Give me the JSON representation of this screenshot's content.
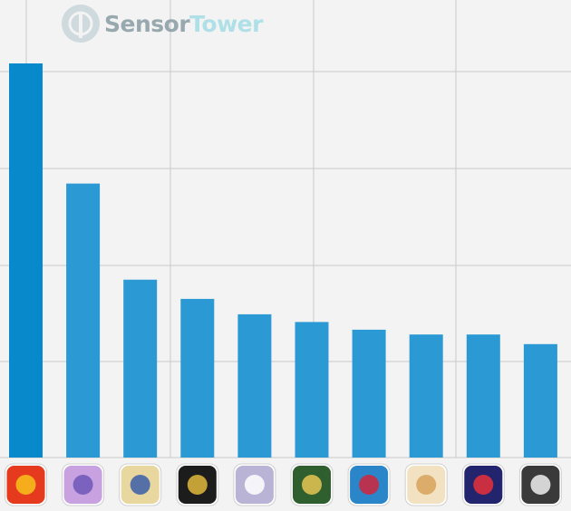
{
  "watermark": {
    "part1": "Sensor",
    "part2": "Tower",
    "color1": "#8fa0a8",
    "color2": "#a8dfe6"
  },
  "colors": {
    "background": "#f3f3f3",
    "grid": "#c9c9c9",
    "bar_first": "#0789cc",
    "bar_rest": "#2b9ad4"
  },
  "chart_data": {
    "type": "bar",
    "title": "",
    "xlabel": "",
    "ylabel": "",
    "ylim": [
      0,
      4.1
    ],
    "grid": true,
    "legend": "none",
    "categories": [
      "app-icon-monster-strike",
      "app-icon-uma-musume",
      "app-icon-fate-grand-order",
      "app-icon-knives-out",
      "app-icon-blue-archive",
      "app-icon-pixel-heroes",
      "app-icon-puzzle-and-dragons",
      "app-icon-genshin-impact",
      "app-icon-pokemon-go",
      "app-icon-pro-baseball-spirits"
    ],
    "values": [
      4.1,
      2.85,
      1.85,
      1.65,
      1.49,
      1.41,
      1.33,
      1.28,
      1.28,
      1.18
    ],
    "icon_colors": [
      "#e63a1e",
      "#c8a2e0",
      "#e9d7a0",
      "#1c1c1c",
      "#b9b4d6",
      "#2f5f2f",
      "#2a86c8",
      "#f2e2c2",
      "#22246e",
      "#3a3a3a"
    ],
    "icon_accents": [
      "#f8c21c",
      "#6e57b8",
      "#3a5ea8",
      "#e1b93b",
      "#ffffff",
      "#e5c651",
      "#d0243a",
      "#d8a25a",
      "#e8303a",
      "#f0f0f0"
    ]
  }
}
